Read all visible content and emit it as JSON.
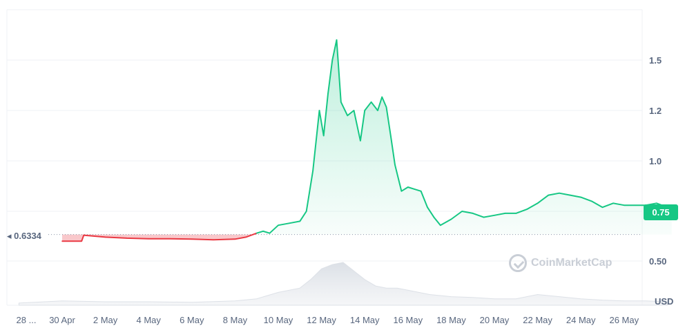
{
  "chart_data": {
    "type": "area",
    "currency": "USD",
    "current_price": "0.75",
    "reference_price": "0.6334",
    "y_ticks": [
      "1.5",
      "1.2",
      "1.0",
      "0.75",
      "0.50"
    ],
    "y_tick_values": [
      1.5,
      1.2,
      1.0,
      0.75,
      0.5
    ],
    "x_ticks": [
      "28 ...",
      "30 Apr",
      "2 May",
      "4 May",
      "6 May",
      "8 May",
      "10 May",
      "12 May",
      "14 May",
      "16 May",
      "18 May",
      "20 May",
      "22 May",
      "24 May",
      "26 May"
    ],
    "x_tick_days": [
      -2,
      0,
      2,
      4,
      6,
      8,
      10,
      12,
      14,
      16,
      18,
      20,
      22,
      24,
      26
    ],
    "series": [
      {
        "days": [
          0,
          0.5,
          0.9,
          1.0,
          1.5,
          2,
          3,
          4,
          5,
          6,
          7,
          8,
          8.5,
          9,
          9.3,
          9.6,
          10,
          10.5,
          11,
          11.3,
          11.6,
          11.9,
          12.1,
          12.3,
          12.5,
          12.7,
          12.9,
          13.2,
          13.5,
          13.8,
          14,
          14.3,
          14.6,
          14.8,
          15.0,
          15.2,
          15.4,
          15.7,
          16,
          16.3,
          16.6,
          16.9,
          17.2,
          17.5,
          18,
          18.5,
          19,
          19.5,
          20,
          20.5,
          21,
          21.5,
          22,
          22.5,
          23,
          23.5,
          24,
          24.5,
          25,
          25.5,
          26,
          26.5,
          27,
          27.5,
          28,
          28.2
        ],
        "values": [
          0.6,
          0.6,
          0.6,
          0.63,
          0.625,
          0.62,
          0.615,
          0.612,
          0.612,
          0.61,
          0.607,
          0.61,
          0.62,
          0.64,
          0.65,
          0.64,
          0.68,
          0.69,
          0.7,
          0.75,
          0.95,
          1.2,
          1.1,
          1.3,
          1.5,
          1.62,
          1.25,
          1.18,
          1.2,
          1.08,
          1.2,
          1.25,
          1.2,
          1.28,
          1.22,
          1.1,
          0.98,
          0.85,
          0.87,
          0.86,
          0.85,
          0.77,
          0.72,
          0.68,
          0.71,
          0.75,
          0.74,
          0.72,
          0.73,
          0.74,
          0.74,
          0.76,
          0.79,
          0.83,
          0.84,
          0.83,
          0.82,
          0.8,
          0.77,
          0.79,
          0.78,
          0.78,
          0.78,
          0.79,
          0.77,
          0.75
        ]
      }
    ],
    "volume": {
      "days": [
        -2,
        0,
        2,
        4,
        6,
        8,
        9,
        10,
        11,
        11.5,
        12,
        12.5,
        13,
        13.5,
        14,
        14.5,
        15,
        15.5,
        16,
        17,
        18,
        19,
        20,
        21,
        22,
        23,
        24,
        25,
        26,
        27,
        28
      ],
      "values": [
        0.05,
        0.1,
        0.08,
        0.08,
        0.07,
        0.1,
        0.15,
        0.3,
        0.4,
        0.6,
        0.85,
        0.95,
        1.0,
        0.8,
        0.6,
        0.45,
        0.4,
        0.4,
        0.35,
        0.25,
        0.2,
        0.18,
        0.15,
        0.15,
        0.25,
        0.2,
        0.15,
        0.12,
        0.1,
        0.1,
        0.08
      ]
    }
  },
  "watermark": "CoinMarketCap"
}
